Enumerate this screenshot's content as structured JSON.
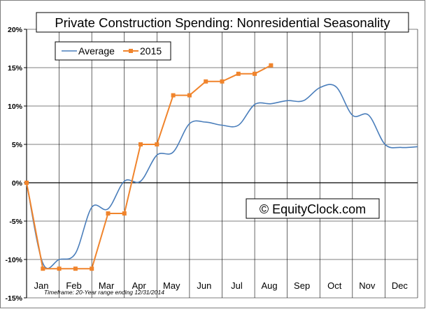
{
  "chart_data": {
    "type": "line",
    "title": "Private Construction Spending: Nonresidential Seasonality",
    "watermark": "© EquityClock.com",
    "footnote": "Timeframe: 20-Year range ending 12/31/2014",
    "ylim": [
      -15,
      20
    ],
    "yticks": [
      20,
      15,
      10,
      5,
      0,
      -5,
      -10,
      -15
    ],
    "ytick_labels": [
      "20%",
      "15%",
      "10%",
      "5%",
      "0%",
      "-5%",
      "-10%",
      "-15%"
    ],
    "months": [
      "Jan",
      "Feb",
      "Mar",
      "Apr",
      "May",
      "Jun",
      "Jul",
      "Aug",
      "Sep",
      "Oct",
      "Nov",
      "Dec"
    ],
    "grid": true,
    "legend_position": "top-left",
    "colors": {
      "average": "#4a7ebb",
      "y2015": "#f0842c",
      "grid": "#000000",
      "frame": "#7f7f7f"
    },
    "series": [
      {
        "name": "Average",
        "x": [
          0,
          0.5,
          1.0,
          1.5,
          2.0,
          2.5,
          3.0,
          3.5,
          4.0,
          4.5,
          5.0,
          5.5,
          6.0,
          6.5,
          7.0,
          7.5,
          8.0,
          8.5,
          9.0,
          9.5,
          10.0,
          10.5,
          11.0,
          11.5,
          12.0
        ],
        "values": [
          0,
          -10.5,
          -10.0,
          -9.2,
          -3.2,
          -3.4,
          0.2,
          0.2,
          3.6,
          4.0,
          7.7,
          7.9,
          7.5,
          7.5,
          10.2,
          10.3,
          10.7,
          10.7,
          12.4,
          12.5,
          8.8,
          8.8,
          5.0,
          4.6,
          4.7
        ]
      },
      {
        "name": "2015",
        "x": [
          0,
          0.5,
          1.0,
          1.5,
          2.0,
          2.5,
          3.0,
          3.5,
          4.0,
          4.5,
          5.0,
          5.5,
          6.0,
          6.5,
          7.0,
          7.5
        ],
        "values": [
          0,
          -11.2,
          -11.2,
          -11.2,
          -11.2,
          -4.0,
          -4.0,
          5.0,
          5.0,
          11.4,
          11.4,
          13.2,
          13.2,
          14.2,
          14.2,
          15.3
        ]
      }
    ]
  }
}
